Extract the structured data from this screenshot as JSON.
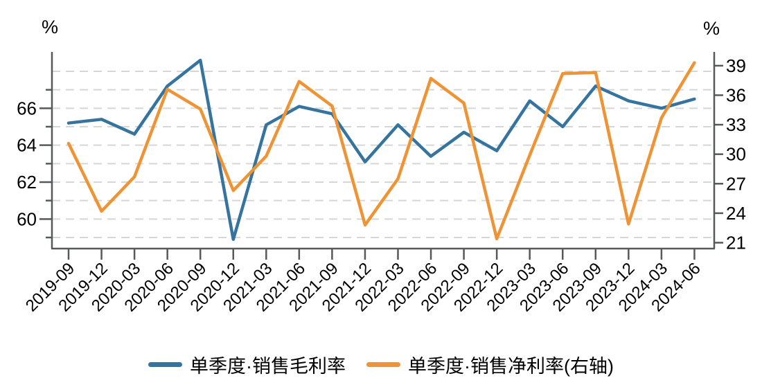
{
  "chart_data": {
    "type": "line",
    "title": "",
    "categories": [
      "2019-09",
      "2019-12",
      "2020-03",
      "2020-06",
      "2020-09",
      "2020-12",
      "2021-03",
      "2021-06",
      "2021-09",
      "2021-12",
      "2022-03",
      "2022-06",
      "2022-09",
      "2022-12",
      "2023-03",
      "2023-06",
      "2023-09",
      "2023-12",
      "2024-03",
      "2024-06"
    ],
    "series": [
      {
        "name": "单季度·销售毛利率",
        "axis": "left",
        "color": "#35749E",
        "values": [
          65.2,
          65.4,
          64.6,
          67.2,
          68.6,
          58.9,
          65.1,
          66.1,
          65.7,
          63.1,
          65.1,
          63.4,
          64.7,
          63.7,
          66.4,
          65.0,
          67.2,
          66.4,
          66.0,
          66.5
        ]
      },
      {
        "name": "单季度·销售净利率(右轴)",
        "axis": "right",
        "color": "#EE9435",
        "values": [
          31.1,
          24.2,
          27.7,
          36.6,
          34.6,
          26.3,
          29.8,
          37.4,
          34.9,
          22.8,
          27.5,
          37.7,
          35.2,
          21.4,
          29.9,
          38.2,
          38.3,
          22.9,
          33.7,
          39.3
        ]
      }
    ],
    "left_axis": {
      "unit_label": "%",
      "range": [
        58.4,
        69.05
      ],
      "labeled_ticks": [
        60,
        62,
        64,
        66
      ],
      "minor_ticks": [
        59,
        61,
        63,
        65,
        67
      ],
      "gridlines": [
        59,
        60,
        61,
        62,
        63,
        64,
        65,
        66,
        67,
        68
      ]
    },
    "right_axis": {
      "unit_label": "%",
      "range": [
        20.4,
        40.4
      ],
      "labeled_ticks": [
        21,
        24,
        27,
        30,
        33,
        36,
        39
      ]
    },
    "grid": "horizontal-dashed",
    "legend_position": "bottom-center",
    "colors": {
      "gridline": "#D6D6D6",
      "spine": "#57585A",
      "text": "#000000",
      "background": "#FFFFFF"
    }
  }
}
